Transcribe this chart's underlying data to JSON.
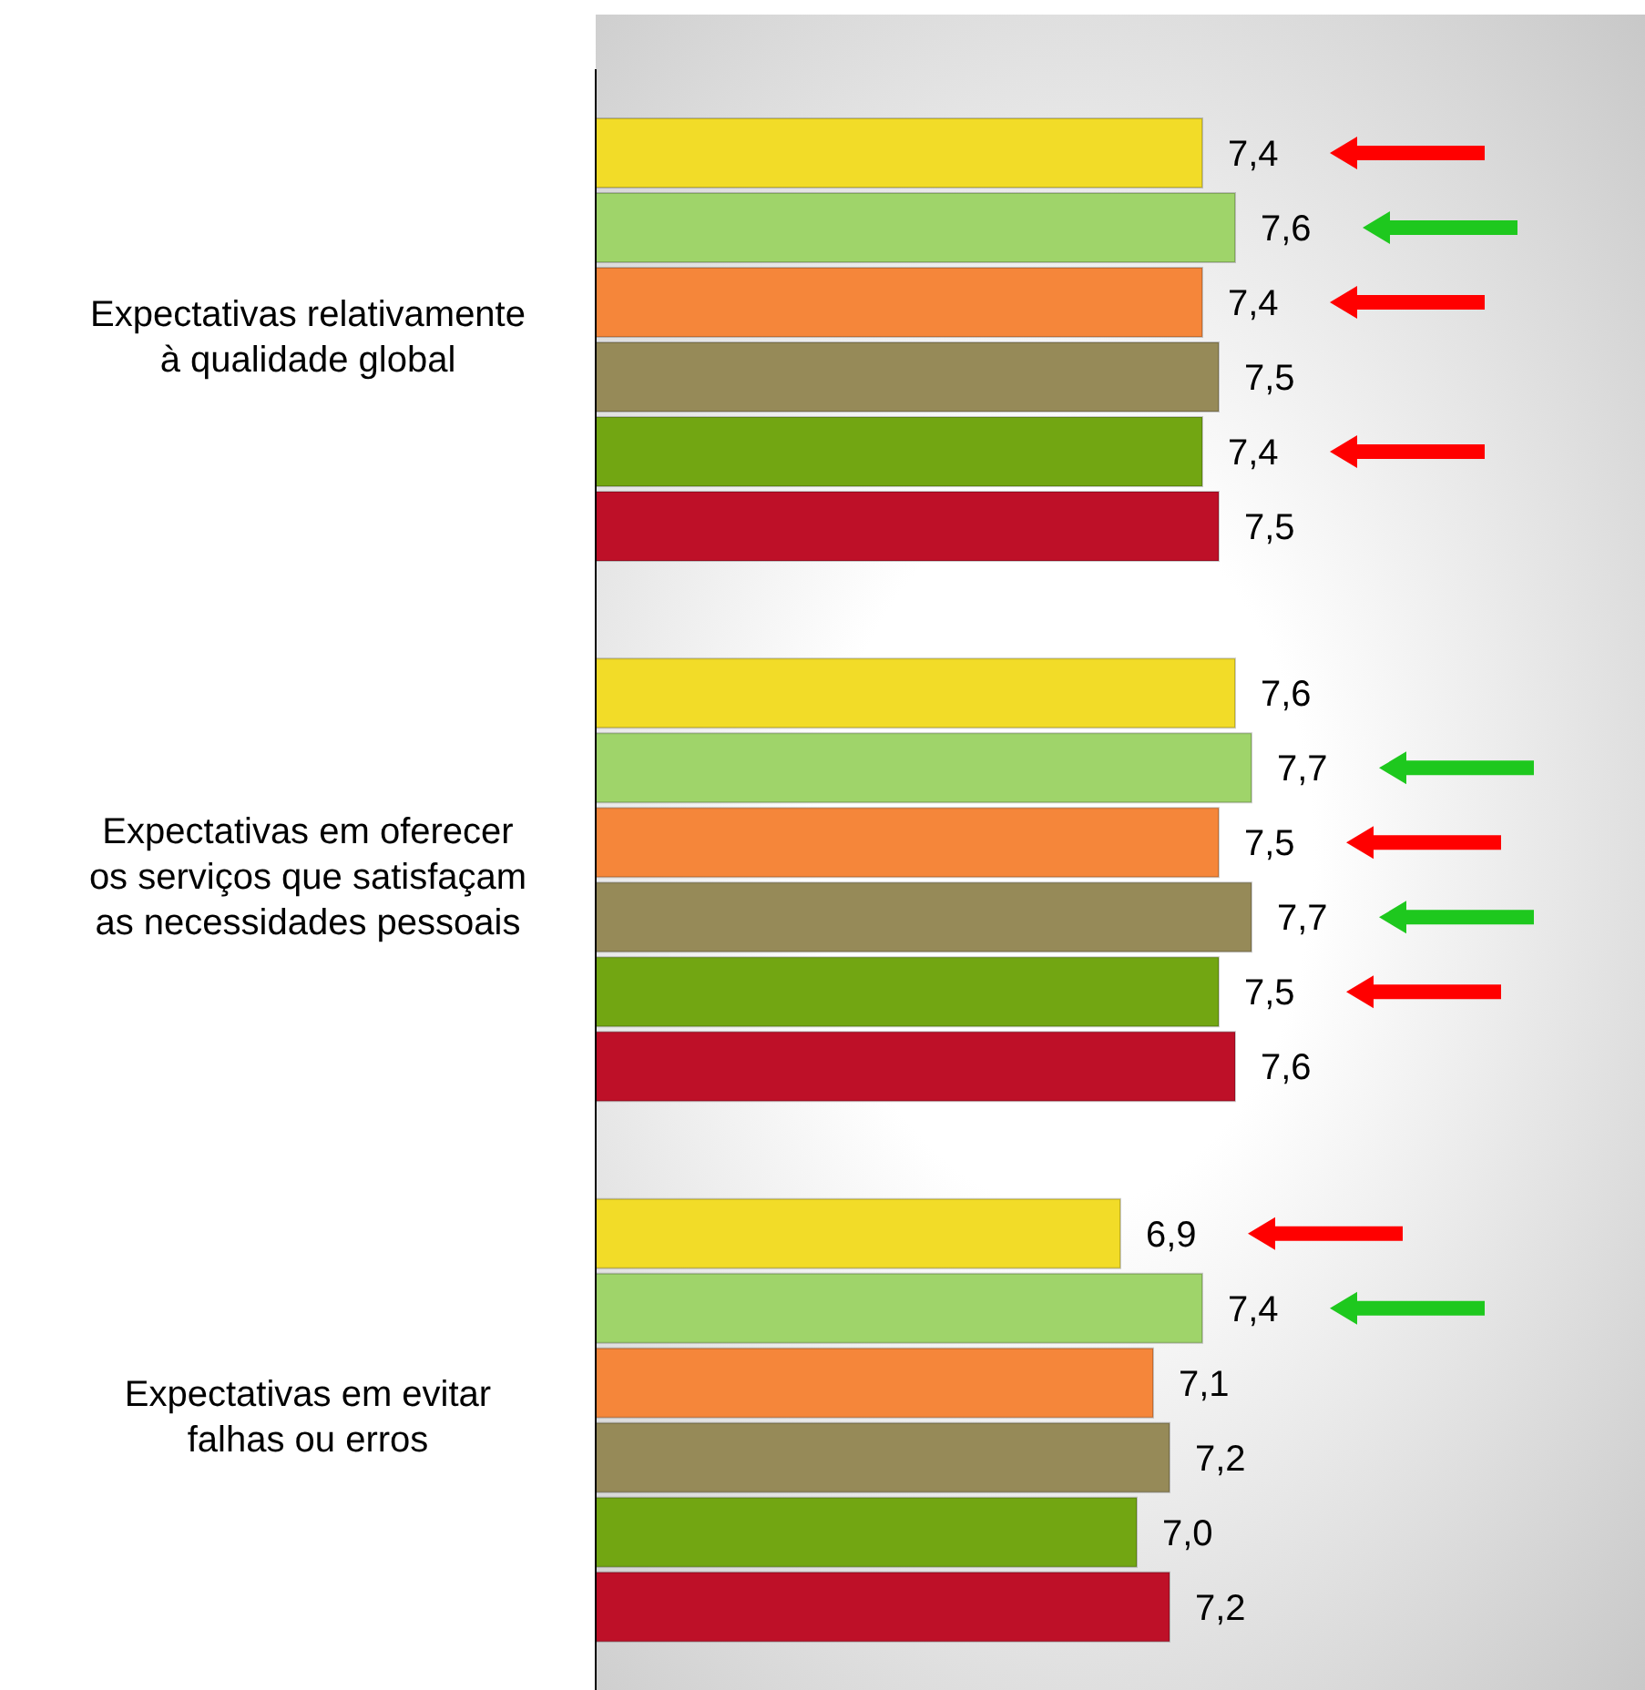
{
  "chart_data": {
    "type": "bar",
    "orientation": "horizontal",
    "categories": [
      "Expectativas relativamente à qualidade global",
      "Expectativas em oferecer os serviços que satisfaçam as necessidades pessoais",
      "Expectativas em evitar falhas ou erros"
    ],
    "series": [
      {
        "color": "#f2dc28",
        "values": [
          7.4,
          7.6,
          6.9
        ],
        "value_labels": [
          "7,4",
          "7,6",
          "6,9"
        ]
      },
      {
        "color": "#9fd46a",
        "values": [
          7.6,
          7.7,
          7.4
        ],
        "value_labels": [
          "7,6",
          "7,7",
          "7,4"
        ]
      },
      {
        "color": "#f5863a",
        "values": [
          7.4,
          7.5,
          7.1
        ],
        "value_labels": [
          "7,4",
          "7,5",
          "7,1"
        ]
      },
      {
        "color": "#968a58",
        "values": [
          7.5,
          7.7,
          7.2
        ],
        "value_labels": [
          "7,5",
          "7,7",
          "7,2"
        ]
      },
      {
        "color": "#72a612",
        "values": [
          7.4,
          7.5,
          7.0
        ],
        "value_labels": [
          "7,4",
          "7,5",
          "7,0"
        ]
      },
      {
        "color": "#be1028",
        "values": [
          7.5,
          7.6,
          7.2
        ],
        "value_labels": [
          "7,5",
          "7,6",
          "7,2"
        ]
      }
    ],
    "xlim": [
      3.7,
      10.1
    ],
    "tick_labels": "y"
  }
}
